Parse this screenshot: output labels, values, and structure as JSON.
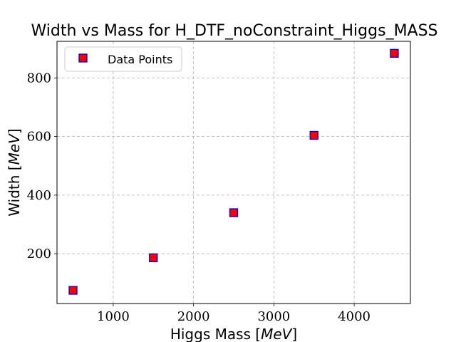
{
  "chart_data": {
    "type": "scatter",
    "title": "Width vs Mass for H_DTF_noConstraint_Higgs_MASS",
    "xlabel": "Higgs Mass [MeV]",
    "ylabel": "Width [MeV]",
    "xlim": [
      300,
      4700
    ],
    "ylim": [
      30,
      925
    ],
    "xticks": [
      1000,
      2000,
      3000,
      4000
    ],
    "yticks": [
      200,
      400,
      600,
      800
    ],
    "grid": true,
    "legend_position": "top-left",
    "series": [
      {
        "name": "Data Points",
        "marker": "square",
        "face_color": "#ff0000",
        "edge_color": "#0000cc",
        "x": [
          500,
          1500,
          2500,
          3500,
          4500
        ],
        "y": [
          75,
          186,
          340,
          604,
          884
        ]
      }
    ]
  }
}
